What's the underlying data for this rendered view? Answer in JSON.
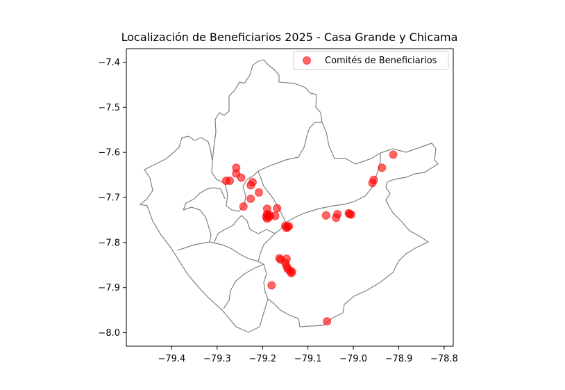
{
  "chart_data": {
    "type": "scatter",
    "title": "Localización de Beneficiarios 2025 - Casa Grande y Chicama",
    "xlabel": "",
    "ylabel": "",
    "xlim": [
      -79.5,
      -78.78
    ],
    "ylim": [
      -8.03,
      -7.37
    ],
    "x_ticks": [
      -79.4,
      -79.3,
      -79.2,
      -79.1,
      -79.0,
      -78.9,
      -78.8
    ],
    "x_tick_labels": [
      "−79.4",
      "−79.3",
      "−79.2",
      "−79.1",
      "−79.0",
      "−78.9",
      "−78.8"
    ],
    "y_ticks": [
      -7.4,
      -7.5,
      -7.6,
      -7.7,
      -7.8,
      -7.9,
      -8.0
    ],
    "y_tick_labels": [
      "−7.4",
      "−7.5",
      "−7.6",
      "−7.7",
      "−7.8",
      "−7.9",
      "−8.0"
    ],
    "grid": false,
    "legend": {
      "placement": "top-right",
      "entries": [
        "Comités de Beneficiarios"
      ]
    },
    "series": [
      {
        "name": "Comités de Beneficiarios",
        "color": "#ff0000",
        "points": [
          [
            -79.28,
            -7.663
          ],
          [
            -79.272,
            -7.663
          ],
          [
            -79.258,
            -7.634
          ],
          [
            -79.258,
            -7.647
          ],
          [
            -79.247,
            -7.656
          ],
          [
            -79.226,
            -7.673
          ],
          [
            -79.222,
            -7.666
          ],
          [
            -79.208,
            -7.689
          ],
          [
            -79.226,
            -7.703
          ],
          [
            -79.242,
            -7.72
          ],
          [
            -79.19,
            -7.725
          ],
          [
            -79.168,
            -7.724
          ],
          [
            -79.19,
            -7.737
          ],
          [
            -79.188,
            -7.74
          ],
          [
            -79.192,
            -7.743
          ],
          [
            -79.183,
            -7.74
          ],
          [
            -79.19,
            -7.747
          ],
          [
            -79.172,
            -7.741
          ],
          [
            -79.186,
            -7.744
          ],
          [
            -79.15,
            -7.763
          ],
          [
            -79.145,
            -7.765
          ],
          [
            -79.147,
            -7.768
          ],
          [
            -79.142,
            -7.764
          ],
          [
            -79.06,
            -7.74
          ],
          [
            -79.038,
            -7.745
          ],
          [
            -79.035,
            -7.737
          ],
          [
            -79.008,
            -7.737
          ],
          [
            -79.01,
            -7.735
          ],
          [
            -79.005,
            -7.738
          ],
          [
            -79.147,
            -7.836
          ],
          [
            -79.163,
            -7.835
          ],
          [
            -79.16,
            -7.838
          ],
          [
            -79.15,
            -7.845
          ],
          [
            -79.147,
            -7.852
          ],
          [
            -79.145,
            -7.858
          ],
          [
            -79.14,
            -7.862
          ],
          [
            -79.137,
            -7.868
          ],
          [
            -79.135,
            -7.865
          ],
          [
            -79.18,
            -7.895
          ],
          [
            -78.955,
            -7.661
          ],
          [
            -78.958,
            -7.668
          ],
          [
            -78.937,
            -7.634
          ],
          [
            -78.912,
            -7.605
          ],
          [
            -79.058,
            -7.975
          ]
        ]
      }
    ]
  }
}
